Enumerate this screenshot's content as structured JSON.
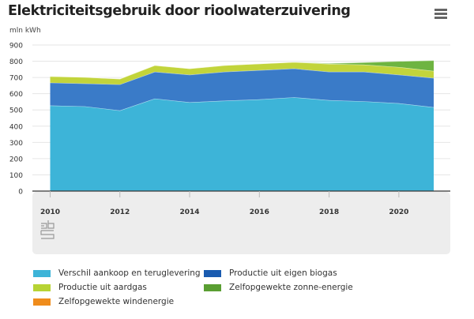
{
  "header": {
    "title": "Elektriciteitsgebruik door rioolwaterzuivering",
    "menu_icon": "hamburger-menu-icon"
  },
  "logo": {
    "icon": "cbs-logo-icon"
  },
  "chart_data": {
    "type": "area",
    "stacked": true,
    "title": "Elektriciteitsgebruik door rioolwaterzuivering",
    "ylabel": "mln kWh",
    "xlabel": "",
    "ylim": [
      0,
      900
    ],
    "yticks": [
      0,
      100,
      200,
      300,
      400,
      500,
      600,
      700,
      800,
      900
    ],
    "xticks": [
      2010,
      2012,
      2014,
      2016,
      2018,
      2020
    ],
    "xlim": [
      2010,
      2021
    ],
    "grid": true,
    "legend_position": "bottom",
    "x": [
      2010,
      2011,
      2012,
      2013,
      2014,
      2015,
      2016,
      2017,
      2018,
      2019,
      2020,
      2021
    ],
    "series": [
      {
        "name": "Verschil aankoop en teruglevering",
        "color": "#3db4d8",
        "values": [
          527,
          522,
          497,
          570,
          547,
          557,
          565,
          578,
          560,
          553,
          541,
          517
        ]
      },
      {
        "name": "Productie uit eigen biogas",
        "color": "#3a7bc8",
        "values": [
          141,
          141,
          160,
          165,
          170,
          178,
          180,
          177,
          175,
          182,
          176,
          180
        ]
      },
      {
        "name": "Productie uit aardgas",
        "color": "#c2d43b",
        "values": [
          39,
          39,
          35,
          40,
          38,
          40,
          40,
          40,
          48,
          44,
          47,
          43
        ]
      },
      {
        "name": "Zelfopgewekte windenergie",
        "color": "#ef9623",
        "values": [
          0,
          0,
          0,
          0,
          0,
          0,
          0,
          0,
          0,
          0,
          0,
          0
        ]
      },
      {
        "name": "Zelfopgewekte zonne-energie",
        "color": "#6eb441",
        "values": [
          0,
          0,
          0,
          0,
          0,
          0,
          0,
          0,
          4,
          14,
          36,
          65
        ]
      }
    ]
  },
  "legend": {
    "items": [
      {
        "label": "Verschil aankoop en teruglevering",
        "color": "#3db4d8"
      },
      {
        "label": "Productie uit eigen biogas",
        "color": "#1a5bb0"
      },
      {
        "label": "Productie uit aardgas",
        "color": "#b7d334"
      },
      {
        "label": "Zelfopgewekte zonne-energie",
        "color": "#5a9e32"
      },
      {
        "label": "Zelfopgewekte windenergie",
        "color": "#ef8c1c"
      }
    ]
  }
}
